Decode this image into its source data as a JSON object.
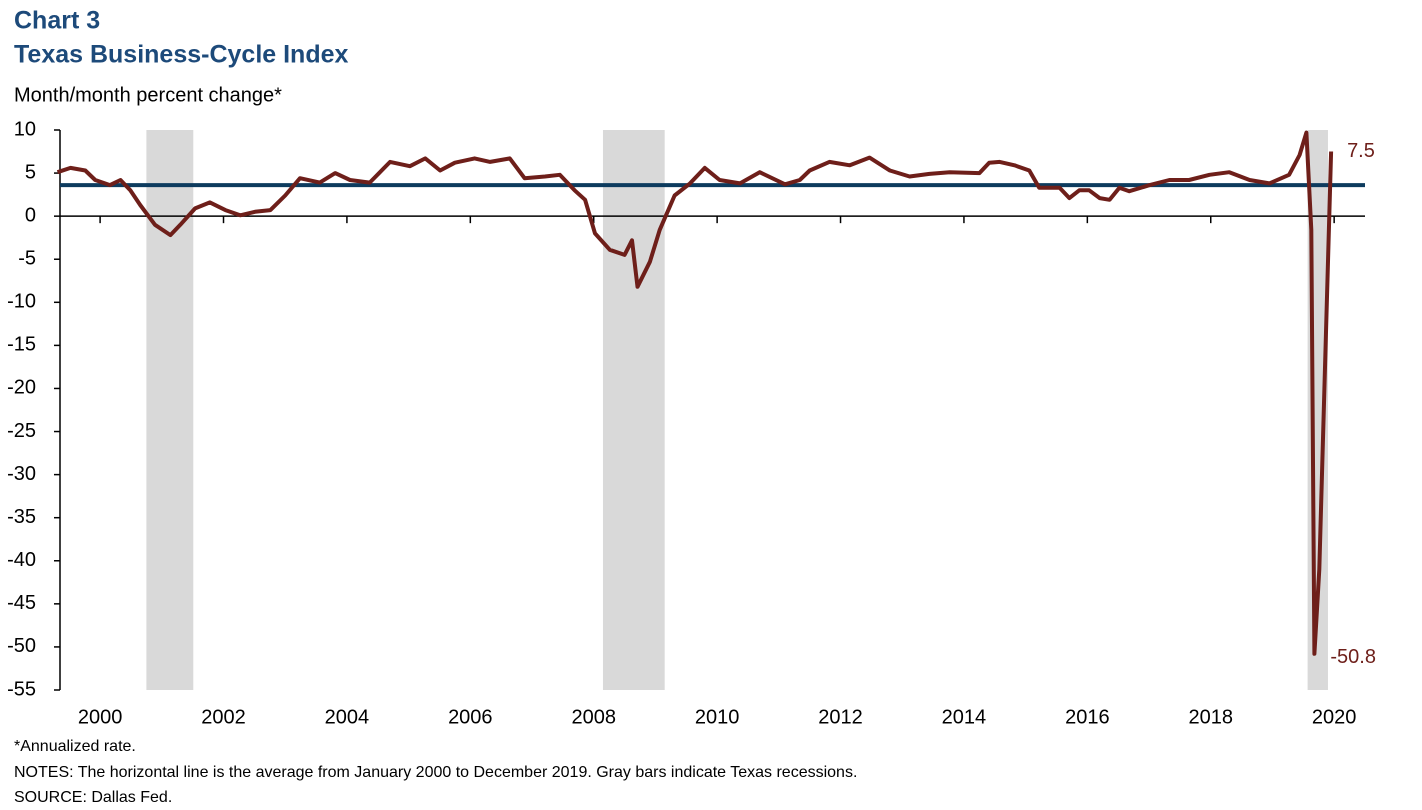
{
  "chart_data": {
    "type": "line",
    "title": "Chart 3",
    "subtitle": "Texas Business-Cycle Index",
    "y_label": "Month/month percent change*",
    "notes": [
      "*Annualized  rate.",
      "NOTES: The horizontal line is the average from January 2000 to December 2019. Gray bars indicate Texas recessions.",
      "SOURCE:  Dallas Fed."
    ],
    "xlim": [
      1999.85,
      2021.0
    ],
    "xticks": [
      {
        "value": 2000.5,
        "label": "2000"
      },
      {
        "value": 2002.5,
        "label": "2002"
      },
      {
        "value": 2004.5,
        "label": "2004"
      },
      {
        "value": 2006.5,
        "label": "2006"
      },
      {
        "value": 2008.5,
        "label": "2008"
      },
      {
        "value": 2010.5,
        "label": "2010"
      },
      {
        "value": 2012.5,
        "label": "2012"
      },
      {
        "value": 2014.5,
        "label": "2014"
      },
      {
        "value": 2016.5,
        "label": "2016"
      },
      {
        "value": 2018.5,
        "label": "2018"
      },
      {
        "value": 2020.5,
        "label": "2020"
      }
    ],
    "ylim": [
      -55,
      10
    ],
    "yticks": [
      10,
      5,
      0,
      -5,
      -10,
      -15,
      -20,
      -25,
      -30,
      -35,
      -40,
      -45,
      -50,
      -55
    ],
    "recessions": [
      [
        2001.25,
        2002.01
      ],
      [
        2008.65,
        2009.65
      ],
      [
        2020.07,
        2020.4
      ]
    ],
    "recession_color": "#d9d9d9",
    "average": 3.6,
    "average_color": "#0d3b5e",
    "series": [
      {
        "name": "Texas Business-Cycle Index",
        "color": "#6e1f1a",
        "x": [
          1999.81,
          2000.02,
          2000.26,
          2000.42,
          2000.66,
          2000.83,
          2000.99,
          2001.15,
          2001.39,
          2001.64,
          2001.8,
          2002.04,
          2002.28,
          2002.53,
          2002.77,
          2003.01,
          2003.26,
          2003.5,
          2003.74,
          2004.06,
          2004.31,
          2004.55,
          2004.87,
          2005.2,
          2005.52,
          2005.77,
          2006.01,
          2006.25,
          2006.57,
          2006.82,
          2007.14,
          2007.38,
          2007.71,
          2007.95,
          2008.19,
          2008.36,
          2008.52,
          2008.76,
          2009.0,
          2009.12,
          2009.21,
          2009.41,
          2009.57,
          2009.81,
          2010.06,
          2010.3,
          2010.54,
          2010.87,
          2011.19,
          2011.6,
          2011.84,
          2012.0,
          2012.32,
          2012.65,
          2012.97,
          2013.3,
          2013.62,
          2013.94,
          2014.27,
          2014.75,
          2014.91,
          2015.08,
          2015.32,
          2015.56,
          2015.72,
          2015.89,
          2016.05,
          2016.21,
          2016.37,
          2016.53,
          2016.7,
          2016.86,
          2017.02,
          2017.18,
          2017.51,
          2017.83,
          2018.15,
          2018.48,
          2018.8,
          2019.13,
          2019.45,
          2019.77,
          2019.94,
          2020.05,
          2020.13,
          2020.18,
          2020.26,
          2020.45
        ],
        "values": [
          5.1,
          5.6,
          5.3,
          4.2,
          3.6,
          4.2,
          3.0,
          1.3,
          -1.0,
          -2.2,
          -1.0,
          0.9,
          1.6,
          0.7,
          0.1,
          0.5,
          0.7,
          2.4,
          4.4,
          3.9,
          5.0,
          4.2,
          3.9,
          6.3,
          5.8,
          6.7,
          5.3,
          6.2,
          6.7,
          6.3,
          6.7,
          4.4,
          4.6,
          4.8,
          3.0,
          1.9,
          -2.0,
          -3.9,
          -4.5,
          -2.8,
          -8.2,
          -5.3,
          -1.6,
          2.4,
          3.8,
          5.6,
          4.2,
          3.8,
          5.1,
          3.7,
          4.2,
          5.3,
          6.3,
          5.9,
          6.8,
          5.3,
          4.6,
          4.9,
          5.1,
          5.0,
          6.2,
          6.3,
          5.9,
          5.3,
          3.3,
          3.3,
          3.3,
          2.1,
          3.0,
          3.0,
          2.1,
          1.9,
          3.3,
          2.9,
          3.6,
          4.2,
          4.2,
          4.8,
          5.1,
          4.2,
          3.8,
          4.8,
          7.1,
          9.7,
          -1.6,
          -50.8,
          -41,
          7.5
        ]
      }
    ],
    "labeled_points": [
      87,
      85
    ]
  }
}
